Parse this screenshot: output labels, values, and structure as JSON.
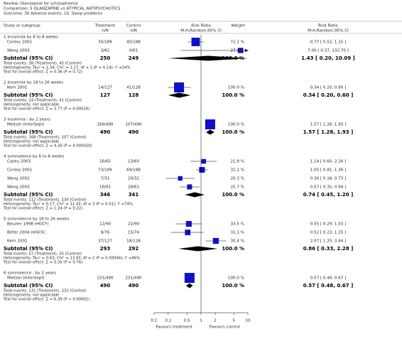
{
  "chart_data": {
    "type": "forest",
    "review": "Review:   Olanzapine for schizophrenia",
    "comparison": "Comparison:   5 OLANZAPINE vs ATYPICAL ANTIPSYCHOTICS",
    "outcome": "Outcome:   30 Adverse events: 10. Sleep problems",
    "columns": {
      "study": "Study or subgroup",
      "treatment": [
        "Treatment",
        "n/N"
      ],
      "control": [
        "Control",
        "n/N"
      ],
      "plot": [
        "Risk Ratio",
        "M-H,Random,95% CI"
      ],
      "weight": "Weight",
      "ci": [
        "Risk Ratio",
        "M-H,Random,95% CI"
      ]
    },
    "xscale": "log",
    "xlim": [
      0.1,
      10
    ],
    "xticks": [
      0.1,
      0.2,
      0.5,
      1,
      2,
      5,
      10
    ],
    "square_color": "#1010c8",
    "diamond_color": "#000000",
    "favours_left": "Favours treatment",
    "favours_right": "Favours control",
    "groups": [
      {
        "title": "1 Insomnia by 6 to 8 weeks",
        "studies": [
          {
            "name": "Conley 2001",
            "treatment": "35/189",
            "control": "45/188",
            "weight": 72.2,
            "weight_label": "72.2 %",
            "rr": 0.77,
            "lower": 0.52,
            "upper": 1.15,
            "ci_label": "0.77 [ 0.52, 1.15 ]"
          },
          {
            "name": "Wang 2003",
            "treatment": "3/61",
            "control": "0/61",
            "weight": 27.8,
            "weight_label": "27.8 %",
            "rr": 7.0,
            "lower": 0.37,
            "upper": 132.7,
            "ci_label": "7.00 [ 0.37, 132.70 ]"
          }
        ],
        "subtotal": {
          "label": "Subtotal (95% CI)",
          "treatment_n": 250,
          "control_n": 249,
          "weight": 100,
          "weight_label": "100.0 %",
          "rr": 1.43,
          "lower": 0.2,
          "upper": 10.09,
          "ci_label": "1.43 [ 0.20, 10.09 ]"
        },
        "notes": [
          "Total events: 38 (Treatment), 45 (Control)",
          "Heterogeneity: Tau² = 1.34; Chi² = 2.17, df = 1 (P = 0.14); I² =54%",
          "Test for overall effect: Z = 0.36 (P = 0.72)"
        ]
      },
      {
        "title": "2 Insomnia by 18 to 26 weeks",
        "studies": [
          {
            "name": "Kern 2001",
            "treatment": "14/127",
            "control": "41/128",
            "weight": 100.0,
            "weight_label": "100.0 %",
            "rr": 0.34,
            "lower": 0.2,
            "upper": 0.6,
            "ci_label": "0.34 [ 0.20, 0.60 ]"
          }
        ],
        "subtotal": {
          "label": "Subtotal (95% CI)",
          "treatment_n": 127,
          "control_n": 128,
          "weight": 100,
          "weight_label": "100.0 %",
          "rr": 0.34,
          "lower": 0.2,
          "upper": 0.6,
          "ci_label": "0.34 [ 0.20, 0.60 ]"
        },
        "notes": [
          "Total events: 14 (Treatment), 41 (Control)",
          "Heterogeneity: not applicable",
          "Test for overall effect: Z = 3.77 (P = 0.00016)"
        ]
      },
      {
        "title": "3 insomnia - by 2 years",
        "studies": [
          {
            "name": "Meltzer (InterSept)",
            "treatment": "168/490",
            "control": "107/490",
            "weight": 100.0,
            "weight_label": "100.0 %",
            "rr": 1.57,
            "lower": 1.28,
            "upper": 1.93,
            "ci_label": "1.57 [ 1.28, 1.93 ]"
          }
        ],
        "subtotal": {
          "label": "Subtotal (95% CI)",
          "treatment_n": 490,
          "control_n": 490,
          "weight": 100,
          "weight_label": "100.0 %",
          "rr": 1.57,
          "lower": 1.28,
          "upper": 1.93,
          "ci_label": "1.57 [ 1.28, 1.93 ]"
        },
        "notes": [
          "Total events: 168 (Treatment), 107 (Control)",
          "Heterogeneity: not applicable",
          "Test for overall effect: Z = 4.26 (P = 0.000020)"
        ]
      },
      {
        "title": "4 somnolence by 6 to 8 weeks",
        "studies": [
          {
            "name": "Casey 2003",
            "treatment": "16/65",
            "control": "13/60",
            "weight": 21.9,
            "weight_label": "21.9 %",
            "rr": 1.14,
            "lower": 0.6,
            "upper": 2.16,
            "ci_label": "1.14 [ 0.60, 2.16 ]"
          },
          {
            "name": "Conley 2001",
            "treatment": "73/189",
            "control": "69/188",
            "weight": 32.2,
            "weight_label": "32.2 %",
            "rr": 1.05,
            "lower": 0.81,
            "upper": 1.36,
            "ci_label": "1.05 [ 0.81, 1.36 ]"
          },
          {
            "name": "Wang 2002",
            "treatment": "7/31",
            "control": "20/32",
            "weight": 20.3,
            "weight_label": "20.3 %",
            "rr": 0.36,
            "lower": 0.18,
            "upper": 0.73,
            "ci_label": "0.36 [ 0.18, 0.73 ]"
          },
          {
            "name": "Wang 2003",
            "treatment": "16/61",
            "control": "28/61",
            "weight": 25.7,
            "weight_label": "25.7 %",
            "rr": 0.57,
            "lower": 0.35,
            "upper": 0.94,
            "ci_label": "0.57 [ 0.35, 0.94 ]"
          }
        ],
        "subtotal": {
          "label": "Subtotal (95% CI)",
          "treatment_n": 346,
          "control_n": 341,
          "weight": 100,
          "weight_label": "100.0 %",
          "rr": 0.74,
          "lower": 0.45,
          "upper": 1.2,
          "ci_label": "0.74 [ 0.45, 1.20 ]"
        },
        "notes": [
          "Total events: 112 (Treatment), 130 (Control)",
          "Heterogeneity: Tau² = 0.17; Chi² = 11.43, df = 3 (P = 0.01); I² =74%",
          "Test for overall effect: Z = 1.24 (P = 0.22)"
        ]
      },
      {
        "title": "5 somnolence by 18 to 26 weeks",
        "studies": [
          {
            "name": "Beuzen 1998 (HGCF)",
            "treatment": "12/90",
            "control": "22/90",
            "weight": 33.5,
            "weight_label": "33.5 %",
            "rr": 0.55,
            "lower": 0.29,
            "upper": 1.03,
            "ci_label": "0.55 [ 0.29, 1.03 ]"
          },
          {
            "name": "Bitter 2004 (HGCK)",
            "treatment": "8/76",
            "control": "15/74",
            "weight": 31.1,
            "weight_label": "31.1 %",
            "rr": 0.52,
            "lower": 0.23,
            "upper": 1.15,
            "ci_label": "0.52 [ 0.23, 1.15 ]"
          },
          {
            "name": "Kern 2001",
            "treatment": "37/127",
            "control": "18/128",
            "weight": 35.4,
            "weight_label": "35.4 %",
            "rr": 2.07,
            "lower": 1.25,
            "upper": 3.44,
            "ci_label": "2.07 [ 1.25, 3.44 ]"
          }
        ],
        "subtotal": {
          "label": "Subtotal (95% CI)",
          "treatment_n": 293,
          "control_n": 292,
          "weight": 100,
          "weight_label": "100.0 %",
          "rr": 0.86,
          "lower": 0.33,
          "upper": 2.28,
          "ci_label": "0.86 [ 0.33, 2.28 ]"
        },
        "notes": [
          "Total events: 57 (Treatment), 55 (Control)",
          "Heterogeneity: Tau² = 0.63; Chi² = 13.93, df = 2 (P = 0.00094); I² =86%",
          "Test for overall effect: Z = 0.30 (P = 0.76)"
        ]
      },
      {
        "title": "6 somnolence - by 2 years",
        "studies": [
          {
            "name": "Meltzer (InterSept)",
            "treatment": "131/490",
            "control": "231/490",
            "weight": 100.0,
            "weight_label": "100.0 %",
            "rr": 0.57,
            "lower": 0.48,
            "upper": 0.67,
            "ci_label": "0.57 [ 0.48, 0.67 ]"
          }
        ],
        "subtotal": {
          "label": "Subtotal (95% CI)",
          "treatment_n": 490,
          "control_n": 490,
          "weight": 100,
          "weight_label": "100.0 %",
          "rr": 0.57,
          "lower": 0.48,
          "upper": 0.67,
          "ci_label": "0.57 [ 0.48, 0.67 ]"
        },
        "notes": [
          "Total events: 131 (Treatment), 231 (Control)",
          "Heterogeneity: not applicable",
          "Test for overall effect: Z = 6.39 (P < 0.00001)"
        ]
      }
    ]
  }
}
